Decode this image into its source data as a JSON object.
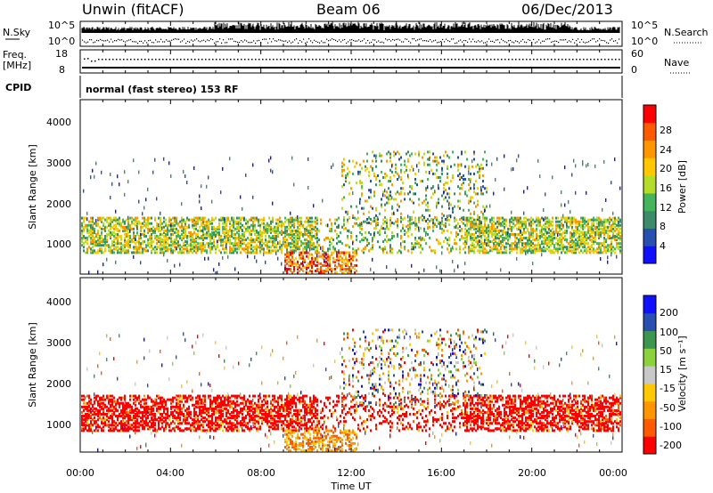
{
  "header": {
    "site": "Unwin (fitACF)",
    "beam": "Beam 06",
    "date": "06/Dec/2013"
  },
  "status_panels": {
    "nsky_label": "N.Sky",
    "nsearch_label": "N.Search",
    "freq_label": "Freq.",
    "freq_unit": "[MHz]",
    "nave_label": "Nave",
    "cpid_label": "CPID",
    "cpid_text": "normal (fast stereo) 153 RF",
    "left_ticks_noise": [
      "10^5",
      "10^0"
    ],
    "right_ticks_noise": [
      "10^5",
      "10^0"
    ],
    "left_ticks_freq": [
      "18",
      "8"
    ],
    "right_ticks_nave": [
      "60",
      "0"
    ]
  },
  "colors": {
    "power_scale": [
      "#1010ff",
      "#2850b0",
      "#3c8c6c",
      "#46b45a",
      "#b4dc28",
      "#ffc800",
      "#ff9600",
      "#ff5a00",
      "#ff0000"
    ],
    "velocity_scale": [
      "#ff0000",
      "#ff5a00",
      "#ff9600",
      "#ffc800",
      "#c8c8c8",
      "#8cd23c",
      "#3c9650",
      "#2850b0",
      "#1010ff"
    ]
  },
  "chart_data": [
    {
      "type": "heatmap",
      "name": "power",
      "ylabel": "Slant Range [km]",
      "y_ticks": [
        "1000",
        "2000",
        "3000",
        "4000"
      ],
      "ylim": [
        180,
        4500
      ],
      "xlim_hours": [
        0,
        24
      ],
      "colorbar_label": "Power [dB]",
      "colorbar_ticks": [
        "4",
        "8",
        "12",
        "16",
        "20",
        "24",
        "28"
      ],
      "colorbar_range": [
        0,
        32
      ]
    },
    {
      "type": "heatmap",
      "name": "velocity",
      "ylabel": "Slant Range [km]",
      "y_ticks": [
        "1000",
        "2000",
        "3000",
        "4000"
      ],
      "ylim": [
        180,
        4500
      ],
      "xlim_hours": [
        0,
        24
      ],
      "colorbar_label": "Velocity [m s⁻¹]",
      "colorbar_ticks": [
        "200",
        "100",
        "50",
        "15",
        "-15",
        "-50",
        "-100",
        "-200"
      ]
    }
  ],
  "x_axis": {
    "tick_labels": [
      "00:00",
      "04:00",
      "08:00",
      "12:00",
      "16:00",
      "20:00",
      "00:00"
    ],
    "label": "Time UT"
  }
}
